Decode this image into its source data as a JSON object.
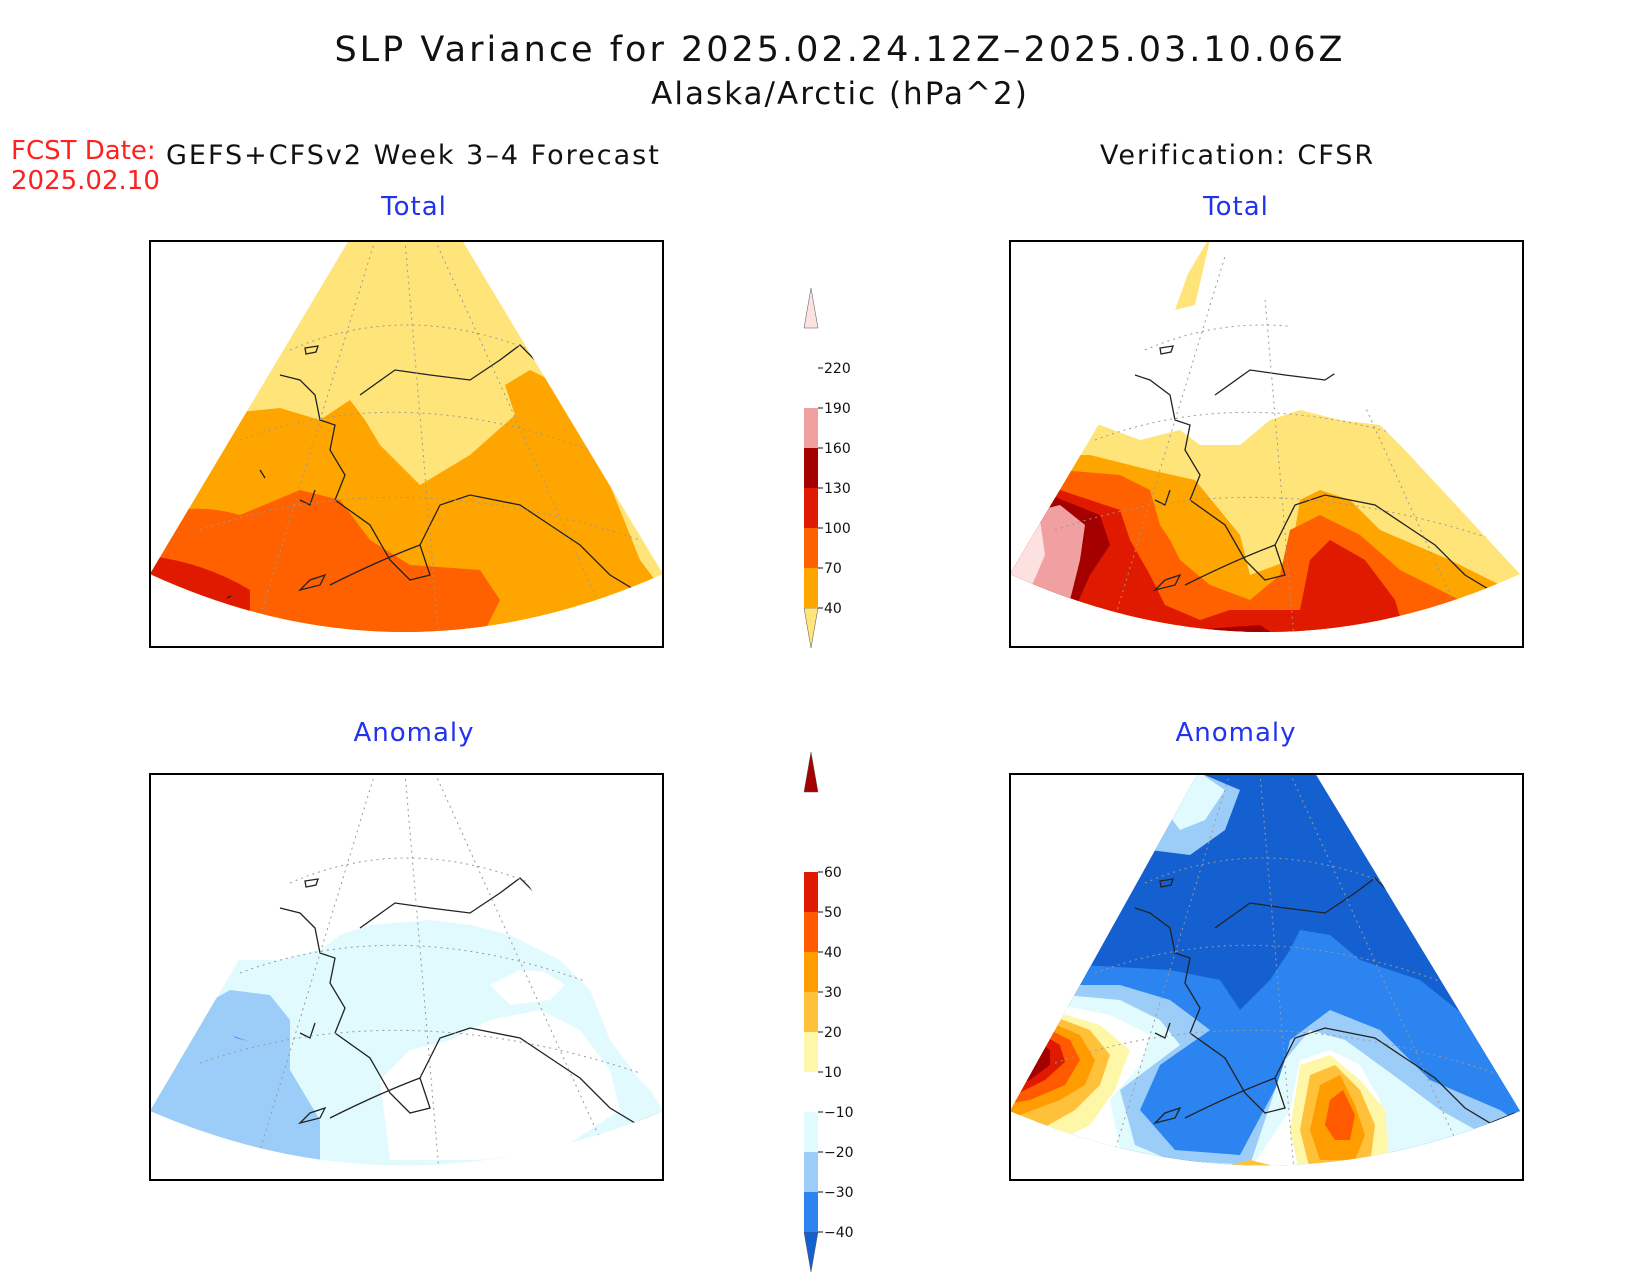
{
  "title": "SLP Variance for 2025.02.24.12Z–2025.03.10.06Z",
  "subtitle": "Alaska/Arctic (hPa^2)",
  "fcst": {
    "label": "FCST Date:",
    "date": "2025.02.10"
  },
  "left_header": "GEFS+CFSv2 Week 3–4 Forecast",
  "right_header": "Verification: CFSR",
  "panels": {
    "top_left": {
      "title": "Total"
    },
    "top_right": {
      "title": "Total"
    },
    "bottom_left": {
      "title": "Anomaly"
    },
    "bottom_right": {
      "title": "Anomaly"
    }
  },
  "colorbar_total": {
    "labels": [
      "40",
      "70",
      "100",
      "130",
      "160",
      "190",
      "220"
    ],
    "colors": [
      "#ffe47a",
      "#ffa500",
      "#ff6000",
      "#e01a00",
      "#a50000",
      "#f0a0a0",
      "#fde0e0"
    ]
  },
  "colorbar_anomaly": {
    "labels": [
      "−40",
      "−30",
      "−20",
      "−10",
      "10",
      "20",
      "30",
      "40",
      "50",
      "60"
    ],
    "colors": [
      "#1560d0",
      "#2b84f0",
      "#9ccdf8",
      "#e0fafe",
      "#ffffff",
      "#fff7a8",
      "#ffc03a",
      "#ff9c00",
      "#ff5a00",
      "#e01a00",
      "#a50000"
    ]
  }
}
